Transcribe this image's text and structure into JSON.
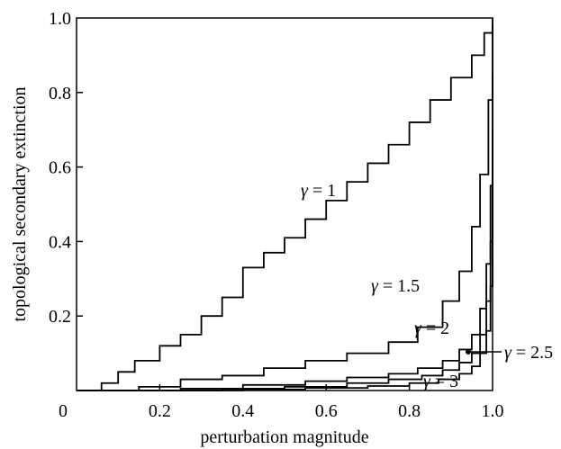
{
  "chart_data": {
    "type": "line",
    "title": "",
    "xlabel": "perturbation magnitude",
    "ylabel": "topological secondary extinction",
    "xlim": [
      0,
      1
    ],
    "ylim": [
      0,
      1
    ],
    "x_ticks": [
      "0",
      "0.2",
      "0.4",
      "0.6",
      "0.8",
      "1.0"
    ],
    "y_ticks": [
      "0.2",
      "0.4",
      "0.6",
      "0.8",
      "1.0"
    ],
    "grid": false,
    "legend": "none",
    "line_color": "#000000",
    "series": [
      {
        "name": "γ = 1",
        "label_symbol": "γ",
        "label_rest": " = 1",
        "points": [
          [
            0.03,
            0.0
          ],
          [
            0.06,
            0.02
          ],
          [
            0.1,
            0.05
          ],
          [
            0.14,
            0.08
          ],
          [
            0.2,
            0.12
          ],
          [
            0.25,
            0.15
          ],
          [
            0.3,
            0.2
          ],
          [
            0.35,
            0.25
          ],
          [
            0.4,
            0.33
          ],
          [
            0.45,
            0.37
          ],
          [
            0.5,
            0.41
          ],
          [
            0.55,
            0.46
          ],
          [
            0.6,
            0.51
          ],
          [
            0.65,
            0.56
          ],
          [
            0.7,
            0.61
          ],
          [
            0.75,
            0.66
          ],
          [
            0.8,
            0.72
          ],
          [
            0.85,
            0.78
          ],
          [
            0.9,
            0.84
          ],
          [
            0.95,
            0.9
          ],
          [
            0.98,
            0.96
          ],
          [
            1.0,
            1.0
          ]
        ]
      },
      {
        "name": "γ = 1.5",
        "label_symbol": "γ",
        "label_rest": " = 1.5",
        "points": [
          [
            0.05,
            0.0
          ],
          [
            0.15,
            0.01
          ],
          [
            0.25,
            0.03
          ],
          [
            0.35,
            0.04
          ],
          [
            0.45,
            0.06
          ],
          [
            0.55,
            0.08
          ],
          [
            0.65,
            0.1
          ],
          [
            0.75,
            0.13
          ],
          [
            0.82,
            0.17
          ],
          [
            0.88,
            0.24
          ],
          [
            0.92,
            0.32
          ],
          [
            0.95,
            0.44
          ],
          [
            0.97,
            0.58
          ],
          [
            0.99,
            0.78
          ],
          [
            1.0,
            0.98
          ]
        ]
      },
      {
        "name": "γ = 2",
        "label_symbol": "γ",
        "label_rest": " = 2",
        "points": [
          [
            0.1,
            0.0
          ],
          [
            0.25,
            0.005
          ],
          [
            0.4,
            0.015
          ],
          [
            0.55,
            0.025
          ],
          [
            0.65,
            0.035
          ],
          [
            0.75,
            0.045
          ],
          [
            0.82,
            0.06
          ],
          [
            0.88,
            0.08
          ],
          [
            0.92,
            0.11
          ],
          [
            0.95,
            0.15
          ],
          [
            0.97,
            0.22
          ],
          [
            0.985,
            0.34
          ],
          [
            0.995,
            0.55
          ],
          [
            1.0,
            0.85
          ]
        ]
      },
      {
        "name": "γ = 2.5",
        "label_symbol": "γ",
        "label_rest": " = 2.5",
        "points": [
          [
            0.15,
            0.0
          ],
          [
            0.35,
            0.005
          ],
          [
            0.5,
            0.01
          ],
          [
            0.65,
            0.02
          ],
          [
            0.75,
            0.03
          ],
          [
            0.83,
            0.04
          ],
          [
            0.88,
            0.055
          ],
          [
            0.92,
            0.075
          ],
          [
            0.95,
            0.1
          ],
          [
            0.97,
            0.15
          ],
          [
            0.985,
            0.24
          ],
          [
            0.995,
            0.4
          ],
          [
            1.0,
            0.7
          ]
        ]
      },
      {
        "name": "γ = 3",
        "label_symbol": "γ",
        "label_rest": " = 3",
        "points": [
          [
            0.2,
            0.0
          ],
          [
            0.4,
            0.003
          ],
          [
            0.55,
            0.007
          ],
          [
            0.7,
            0.012
          ],
          [
            0.8,
            0.02
          ],
          [
            0.87,
            0.03
          ],
          [
            0.92,
            0.045
          ],
          [
            0.95,
            0.065
          ],
          [
            0.97,
            0.1
          ],
          [
            0.985,
            0.16
          ],
          [
            0.995,
            0.28
          ],
          [
            1.0,
            0.55
          ]
        ]
      }
    ]
  }
}
